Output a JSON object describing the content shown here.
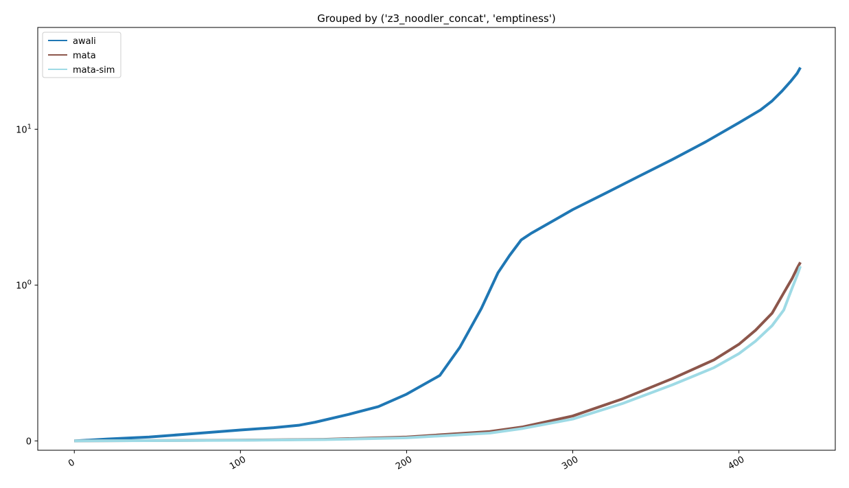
{
  "chart_data": {
    "type": "line",
    "title": "Grouped by ('z3_noodler_concat', 'emptiness')",
    "xlabel": "",
    "ylabel": "",
    "xlim": [
      -22,
      458
    ],
    "ylim": [
      -0.06,
      45
    ],
    "yscale": "symlog",
    "symlog_linthresh": 1,
    "grid": false,
    "legend_position": "top-left",
    "x_ticks": [
      0,
      100,
      200,
      300,
      400
    ],
    "x_tick_labels": [
      "0",
      "100",
      "200",
      "300",
      "400"
    ],
    "y_ticks": [
      0,
      1,
      10
    ],
    "y_tick_labels": [
      {
        "base": "0",
        "exp": ""
      },
      {
        "base": "10",
        "exp": "0"
      },
      {
        "base": "10",
        "exp": "1"
      }
    ],
    "series": [
      {
        "name": "awali",
        "color": "#1f77b4",
        "points": [
          [
            0,
            0
          ],
          [
            20,
            0.012
          ],
          [
            45,
            0.025
          ],
          [
            70,
            0.045
          ],
          [
            100,
            0.07
          ],
          [
            120,
            0.085
          ],
          [
            135,
            0.1
          ],
          [
            145,
            0.12
          ],
          [
            165,
            0.17
          ],
          [
            183,
            0.22
          ],
          [
            200,
            0.3
          ],
          [
            220,
            0.42
          ],
          [
            232,
            0.6
          ],
          [
            245,
            0.85
          ],
          [
            255,
            1.2
          ],
          [
            262,
            1.55
          ],
          [
            269,
            1.95
          ],
          [
            275,
            2.15
          ],
          [
            290,
            2.65
          ],
          [
            300,
            3.05
          ],
          [
            320,
            3.9
          ],
          [
            340,
            5.0
          ],
          [
            360,
            6.4
          ],
          [
            380,
            8.3
          ],
          [
            400,
            11.0
          ],
          [
            413,
            13.3
          ],
          [
            420,
            15.2
          ],
          [
            426,
            17.6
          ],
          [
            431,
            20.2
          ],
          [
            435,
            22.8
          ],
          [
            437,
            24.9
          ]
        ]
      },
      {
        "name": "mata",
        "color": "#8c564b",
        "points": [
          [
            0,
            0
          ],
          [
            100,
            0.005
          ],
          [
            150,
            0.01
          ],
          [
            200,
            0.025
          ],
          [
            250,
            0.06
          ],
          [
            270,
            0.09
          ],
          [
            300,
            0.16
          ],
          [
            330,
            0.27
          ],
          [
            360,
            0.4
          ],
          [
            385,
            0.52
          ],
          [
            400,
            0.62
          ],
          [
            410,
            0.71
          ],
          [
            420,
            0.82
          ],
          [
            427,
            0.95
          ],
          [
            432,
            1.1
          ],
          [
            435,
            1.28
          ],
          [
            437,
            1.4
          ]
        ]
      },
      {
        "name": "mata-sim",
        "color": "#9edae5",
        "points": [
          [
            0,
            0
          ],
          [
            100,
            0.004
          ],
          [
            150,
            0.008
          ],
          [
            200,
            0.02
          ],
          [
            250,
            0.05
          ],
          [
            270,
            0.08
          ],
          [
            300,
            0.14
          ],
          [
            330,
            0.24
          ],
          [
            360,
            0.36
          ],
          [
            385,
            0.47
          ],
          [
            400,
            0.56
          ],
          [
            410,
            0.64
          ],
          [
            420,
            0.74
          ],
          [
            427,
            0.84
          ],
          [
            432,
            0.98
          ],
          [
            435,
            1.15
          ],
          [
            437,
            1.32
          ]
        ]
      }
    ]
  }
}
